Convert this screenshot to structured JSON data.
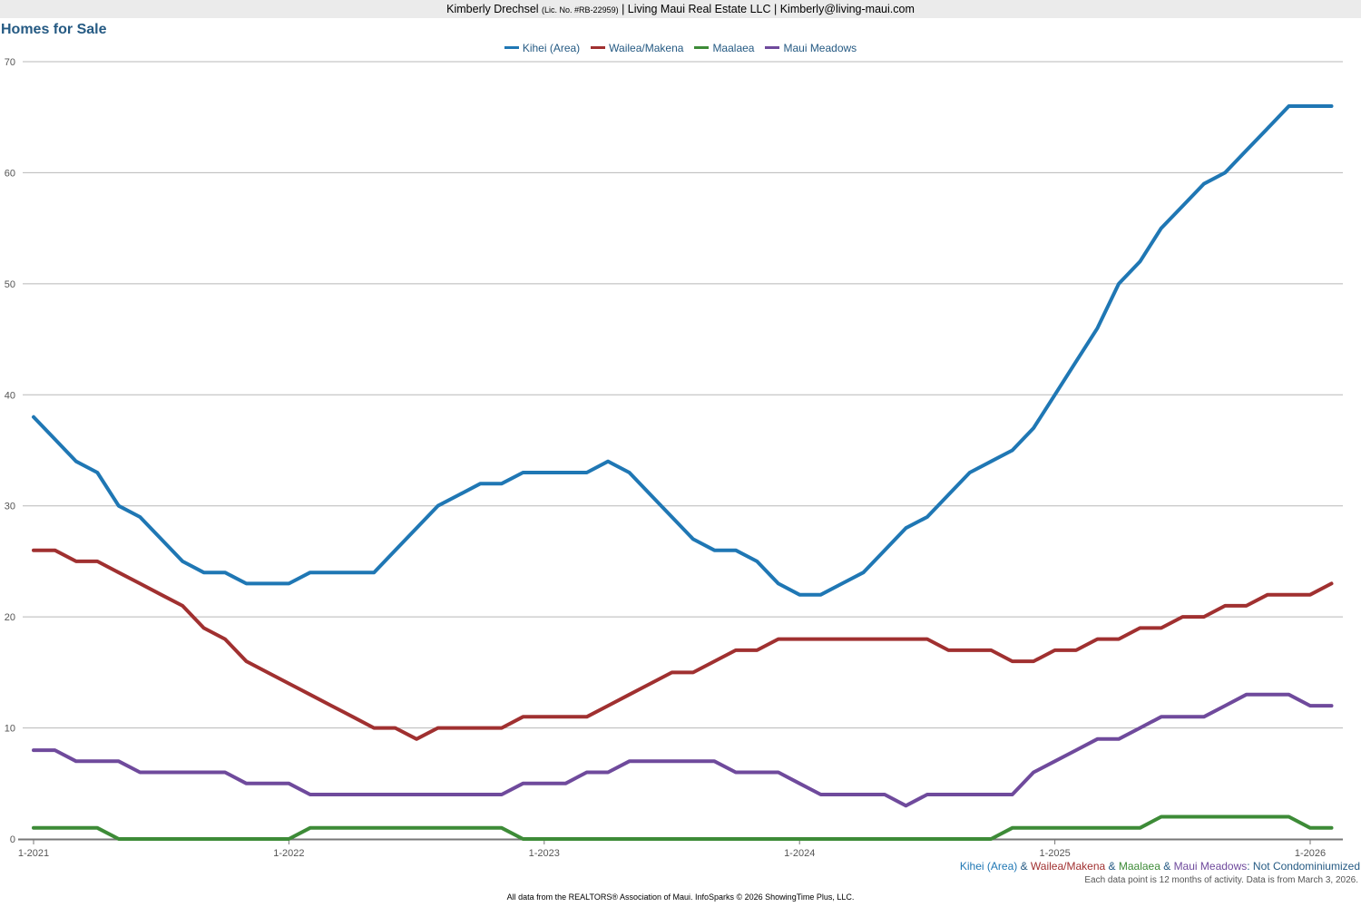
{
  "header": {
    "agent": "Kimberly Drechsel",
    "license": "(Lic. No. #RB-22959)",
    "rest": "| Living Maui Real Estate LLC | Kimberly@living-maui.com"
  },
  "chart_data": {
    "type": "line",
    "title": "Homes for Sale",
    "xlabel": "",
    "ylabel": "",
    "ylim": [
      0,
      70
    ],
    "y_ticks": [
      0,
      10,
      20,
      30,
      40,
      50,
      60,
      70
    ],
    "x_tick_labels": [
      "1-2021",
      "1-2022",
      "1-2023",
      "1-2024",
      "1-2025",
      "1-2026"
    ],
    "x_start": "1-2021",
    "grid": true,
    "legend_position": "top-center",
    "series": [
      {
        "name": "Kihei (Area)",
        "color": "#1f77b4",
        "values": [
          38,
          36,
          34,
          33,
          30,
          29,
          27,
          25,
          24,
          24,
          23,
          23,
          23,
          24,
          24,
          24,
          24,
          26,
          28,
          30,
          31,
          32,
          32,
          33,
          33,
          33,
          33,
          34,
          33,
          31,
          29,
          27,
          26,
          26,
          25,
          23,
          22,
          22,
          23,
          24,
          26,
          28,
          29,
          31,
          33,
          34,
          35,
          37,
          40,
          43,
          46,
          50,
          52,
          55,
          57,
          59,
          60,
          62,
          64,
          66,
          66,
          66
        ]
      },
      {
        "name": "Wailea/Makena",
        "color": "#a03030",
        "values": [
          26,
          26,
          25,
          25,
          24,
          23,
          22,
          21,
          19,
          18,
          16,
          15,
          14,
          13,
          12,
          11,
          10,
          10,
          9,
          10,
          10,
          10,
          10,
          11,
          11,
          11,
          11,
          12,
          13,
          14,
          15,
          15,
          16,
          17,
          17,
          18,
          18,
          18,
          18,
          18,
          18,
          18,
          18,
          17,
          17,
          17,
          16,
          16,
          17,
          17,
          18,
          18,
          19,
          19,
          20,
          20,
          21,
          21,
          22,
          22,
          22,
          23
        ]
      },
      {
        "name": "Maalaea",
        "color": "#3d8b37",
        "values": [
          1,
          1,
          1,
          1,
          0,
          0,
          0,
          0,
          0,
          0,
          0,
          0,
          0,
          1,
          1,
          1,
          1,
          1,
          1,
          1,
          1,
          1,
          1,
          0,
          0,
          0,
          0,
          0,
          0,
          0,
          0,
          0,
          0,
          0,
          0,
          0,
          0,
          0,
          0,
          0,
          0,
          0,
          0,
          0,
          0,
          0,
          1,
          1,
          1,
          1,
          1,
          1,
          1,
          2,
          2,
          2,
          2,
          2,
          2,
          2,
          1,
          1
        ]
      },
      {
        "name": "Maui Meadows",
        "color": "#6f4a9c",
        "values": [
          8,
          8,
          7,
          7,
          7,
          6,
          6,
          6,
          6,
          6,
          5,
          5,
          5,
          4,
          4,
          4,
          4,
          4,
          4,
          4,
          4,
          4,
          4,
          5,
          5,
          5,
          6,
          6,
          7,
          7,
          7,
          7,
          7,
          6,
          6,
          6,
          5,
          4,
          4,
          4,
          4,
          3,
          4,
          4,
          4,
          4,
          4,
          6,
          7,
          8,
          9,
          9,
          10,
          11,
          11,
          11,
          12,
          13,
          13,
          13,
          12,
          12
        ]
      }
    ]
  },
  "caption": {
    "parts": [
      {
        "text": "Kihei (Area)",
        "color": "#1f77b4"
      },
      {
        "text": " & ",
        "color": "#255a83"
      },
      {
        "text": "Wailea/Makena",
        "color": "#a03030"
      },
      {
        "text": " & ",
        "color": "#255a83"
      },
      {
        "text": "Maalaea",
        "color": "#3d8b37"
      },
      {
        "text": " & ",
        "color": "#255a83"
      },
      {
        "text": "Maui Meadows",
        "color": "#6f4a9c"
      },
      {
        "text": ": Not Condominiumized",
        "color": "#255a83"
      }
    ]
  },
  "note": "Each data point is 12 months of activity. Data is from March 3, 2026.",
  "footer": "All data from the REALTORS® Association of Maui. InfoSparks © 2026 ShowingTime Plus, LLC."
}
